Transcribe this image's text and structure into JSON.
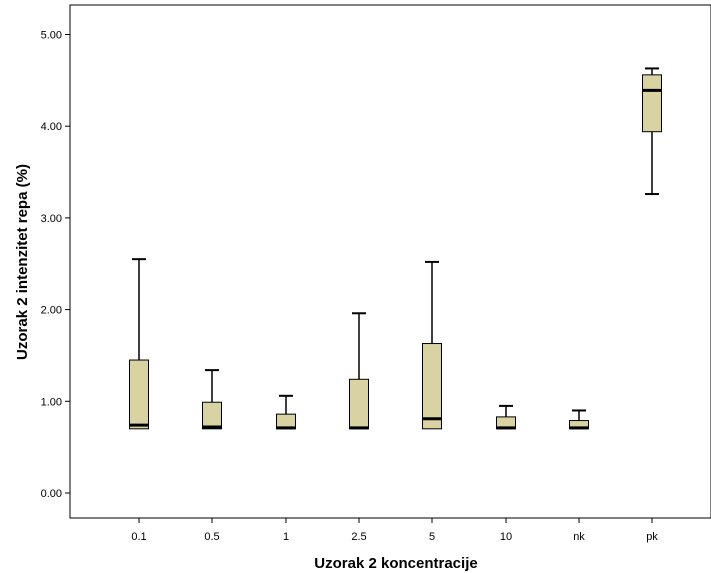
{
  "chart_data": {
    "type": "boxplot",
    "title": "",
    "xlabel": "Uzorak 2 koncentracije",
    "ylabel": "Uzorak 2 intenzitet repa (%)",
    "ylim": [
      -0.3,
      5.3
    ],
    "yticks": [
      "0.00",
      "1.00",
      "2.00",
      "3.00",
      "4.00",
      "5.00"
    ],
    "ytick_values": [
      0,
      1,
      2,
      3,
      4,
      5
    ],
    "grid": false,
    "legend": "none",
    "box_color": "#d9d3a3",
    "categories": [
      "0.1",
      "0.5",
      "1",
      "2.5",
      "5",
      "10",
      "nk",
      "pk"
    ],
    "boxes": [
      {
        "category": "0.1",
        "min": 0.7,
        "q1": 0.7,
        "median": 0.74,
        "q3": 1.45,
        "max": 2.55
      },
      {
        "category": "0.5",
        "min": 0.7,
        "q1": 0.7,
        "median": 0.72,
        "q3": 0.99,
        "max": 1.34
      },
      {
        "category": "1",
        "min": 0.7,
        "q1": 0.7,
        "median": 0.71,
        "q3": 0.86,
        "max": 1.06
      },
      {
        "category": "2.5",
        "min": 0.7,
        "q1": 0.7,
        "median": 0.71,
        "q3": 1.24,
        "max": 1.96
      },
      {
        "category": "5",
        "min": 0.7,
        "q1": 0.7,
        "median": 0.81,
        "q3": 1.63,
        "max": 2.52
      },
      {
        "category": "10",
        "min": 0.7,
        "q1": 0.7,
        "median": 0.71,
        "q3": 0.83,
        "max": 0.95
      },
      {
        "category": "nk",
        "min": 0.7,
        "q1": 0.7,
        "median": 0.71,
        "q3": 0.79,
        "max": 0.9
      },
      {
        "category": "pk",
        "min": 3.26,
        "q1": 3.94,
        "median": 4.39,
        "q3": 4.56,
        "max": 4.63
      }
    ]
  }
}
